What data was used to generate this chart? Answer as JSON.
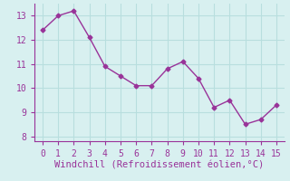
{
  "x": [
    0,
    1,
    2,
    3,
    4,
    5,
    6,
    7,
    8,
    9,
    10,
    11,
    12,
    13,
    14,
    15
  ],
  "y": [
    12.4,
    13.0,
    13.2,
    12.1,
    10.9,
    10.5,
    10.1,
    10.1,
    10.8,
    11.1,
    10.4,
    9.2,
    9.5,
    8.5,
    8.7,
    9.3
  ],
  "line_color": "#993399",
  "marker": "D",
  "marker_size": 2.5,
  "bg_color": "#d8f0f0",
  "grid_color": "#b8dede",
  "xlabel": "Windchill (Refroidissement éolien,°C)",
  "xlabel_color": "#993399",
  "tick_color": "#993399",
  "spine_color": "#993399",
  "ylim": [
    7.8,
    13.5
  ],
  "xlim": [
    -0.5,
    15.5
  ],
  "yticks": [
    8,
    9,
    10,
    11,
    12,
    13
  ],
  "xticks": [
    0,
    1,
    2,
    3,
    4,
    5,
    6,
    7,
    8,
    9,
    10,
    11,
    12,
    13,
    14,
    15
  ],
  "xlabel_fontsize": 7.5,
  "tick_fontsize": 7
}
